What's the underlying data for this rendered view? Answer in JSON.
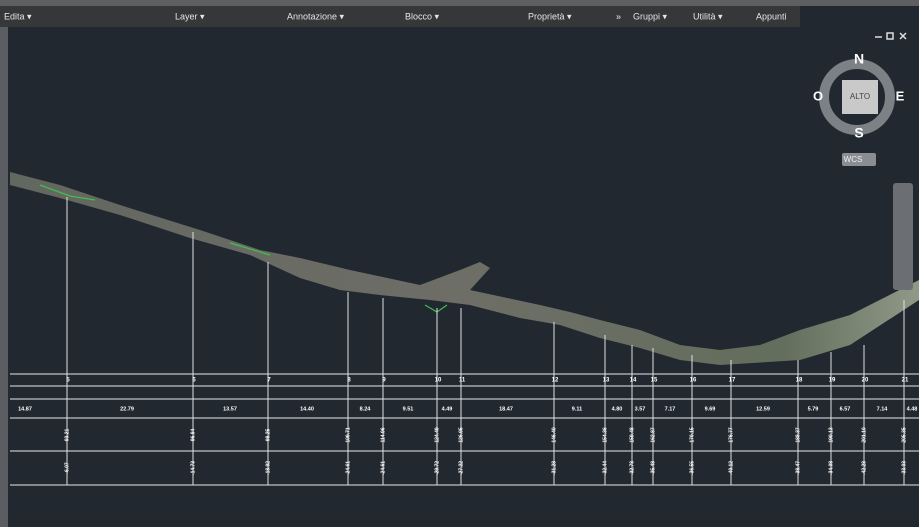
{
  "ribbon": {
    "panels": [
      "Edita ▾",
      "Layer ▾",
      "Annotazione ▾",
      "Blocco ▾",
      "Proprietà ▾",
      "»",
      "Gruppi ▾",
      "Utilità ▾",
      "Appunti"
    ]
  },
  "viewcube": {
    "north": "N",
    "south": "S",
    "east": "E",
    "west": "O",
    "face": "ALTO",
    "ucs": "WCS"
  },
  "profile": {
    "stations": [
      {
        "number": "5",
        "elevation": "93.21",
        "offset": "-6.07"
      },
      {
        "number": "6",
        "elevation": "96.84",
        "offset": "-14.73"
      },
      {
        "number": "7",
        "elevation": "98.25",
        "offset": "-18.92"
      },
      {
        "number": "8",
        "elevation": "109.71",
        "offset": "-24.61"
      },
      {
        "number": "9",
        "elevation": "114.96",
        "offset": "-24.61"
      },
      {
        "number": "10",
        "elevation": "124.49",
        "offset": "-29.72"
      },
      {
        "number": "11",
        "elevation": "126.95",
        "offset": "-27.22"
      },
      {
        "number": "12",
        "elevation": "146.40",
        "offset": "-31.28"
      },
      {
        "number": "13",
        "elevation": "154.36",
        "offset": "-32.44"
      },
      {
        "number": "14",
        "elevation": "159.48",
        "offset": "-32.78"
      },
      {
        "number": "15",
        "elevation": "162.87",
        "offset": "-35.48"
      },
      {
        "number": "16",
        "elevation": "170.15",
        "offset": "-36.55"
      },
      {
        "number": "17",
        "elevation": "176.77",
        "offset": "-40.12"
      },
      {
        "number": "18",
        "elevation": "188.37",
        "offset": "-38.47"
      },
      {
        "number": "19",
        "elevation": "190.13",
        "offset": "-34.08"
      },
      {
        "number": "20",
        "elevation": "201.10",
        "offset": "-42.28"
      },
      {
        "number": "21",
        "elevation": "205.35",
        "offset": "-33.03"
      }
    ],
    "distances": [
      "14.87",
      "22.79",
      "13.57",
      "14.40",
      "8.24",
      "9.51",
      "4.49",
      "18.47",
      "9.11",
      "4.80",
      "3.57",
      "7.17",
      "9.69",
      "12.59",
      "5.79",
      "6.57",
      "7.14",
      "4.48"
    ]
  }
}
